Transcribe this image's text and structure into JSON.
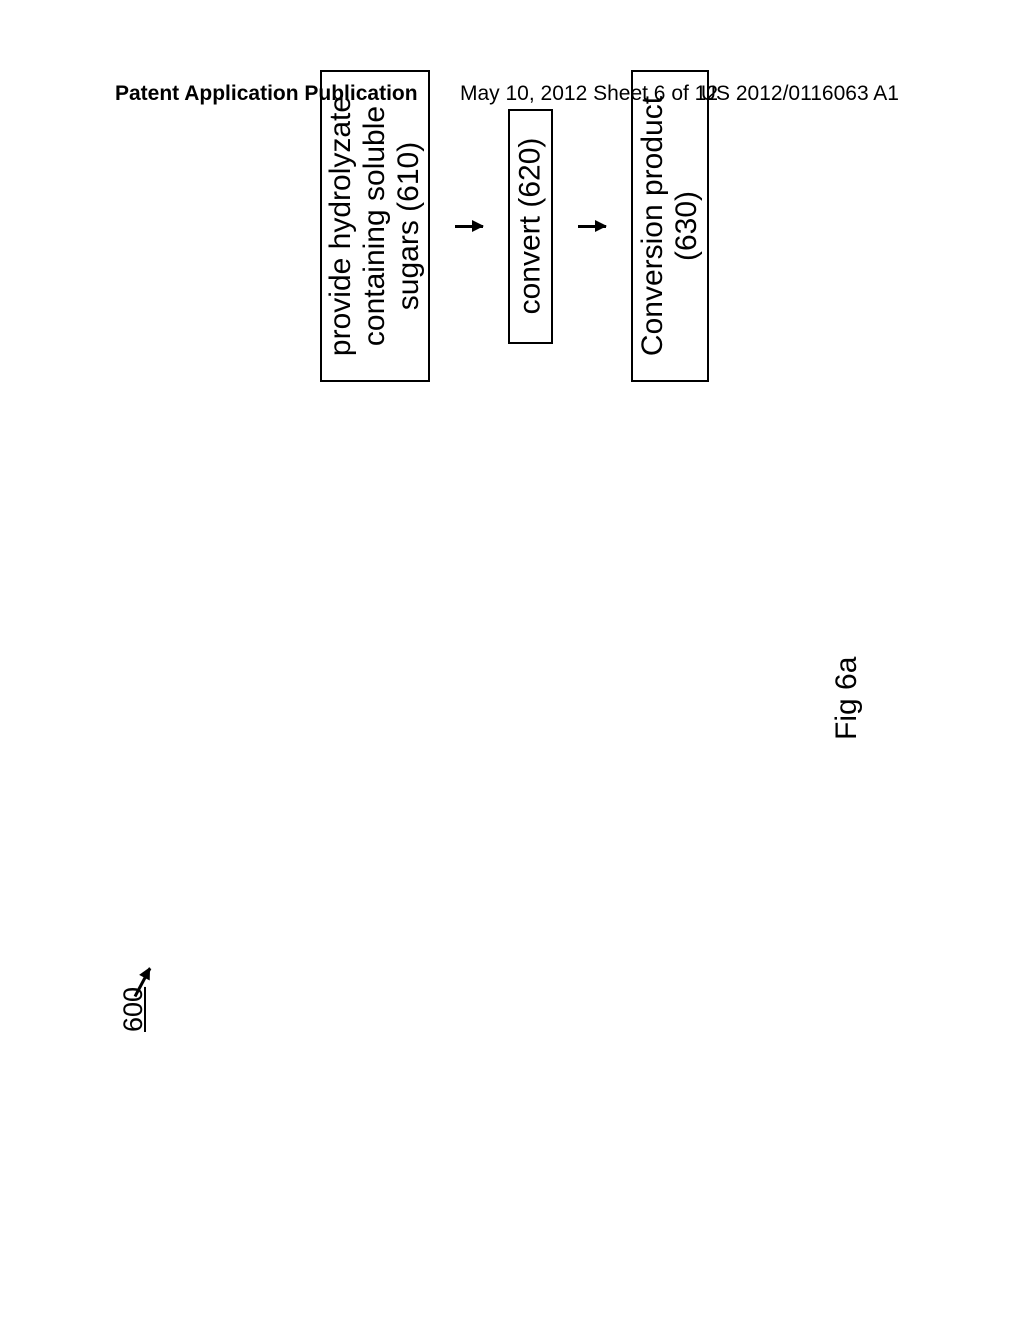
{
  "header": {
    "left": "Patent Application Publication",
    "center": "May 10, 2012  Sheet 6 of 12",
    "right": "US 2012/0116063 A1"
  },
  "diagram": {
    "reference_number": "600",
    "figure_label": "Fig 6a",
    "boxes": {
      "box1": {
        "line1": "provide hydrolyzate",
        "line2": "containing soluble",
        "line3": "sugars (610)"
      },
      "box2": "convert (620)",
      "box3": {
        "line1": "Conversion product",
        "line2": "(630)"
      }
    }
  },
  "styling": {
    "background_color": "#ffffff",
    "border_color": "#000000",
    "text_color": "#000000",
    "box_border_width": 2,
    "header_font_size": 21,
    "box_font_size": 30,
    "label_font_size": 30
  }
}
